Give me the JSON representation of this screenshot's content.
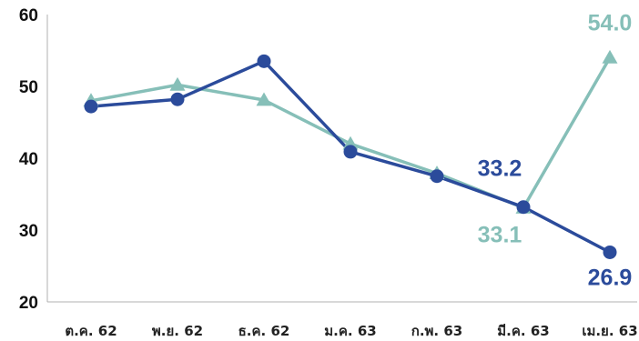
{
  "chart_data": {
    "type": "line",
    "categories": [
      "ต.ค. 62",
      "พ.ย. 62",
      "ธ.ค. 62",
      "ม.ค. 63",
      "ก.พ. 63",
      "มี.ค. 63",
      "เม.ย. 63"
    ],
    "series": [
      {
        "values": [
          47.2,
          48.2,
          53.5,
          40.9,
          37.5,
          33.2,
          26.9
        ],
        "color": "#2b4b9b",
        "marker": "circle"
      },
      {
        "values": [
          48.0,
          50.2,
          48.1,
          42.0,
          37.9,
          33.1,
          54.0
        ],
        "color": "#86bfb8",
        "marker": "triangle"
      }
    ],
    "ylim": [
      20,
      60
    ],
    "yticks": [
      "20",
      "30",
      "40",
      "50",
      "60"
    ],
    "grid": false,
    "data_labels": [
      {
        "text": "33.2",
        "series": 0,
        "point": 5
      },
      {
        "text": "26.9",
        "series": 0,
        "point": 6
      },
      {
        "text": "33.1",
        "series": 1,
        "point": 5
      },
      {
        "text": "54.0",
        "series": 1,
        "point": 6
      }
    ]
  }
}
